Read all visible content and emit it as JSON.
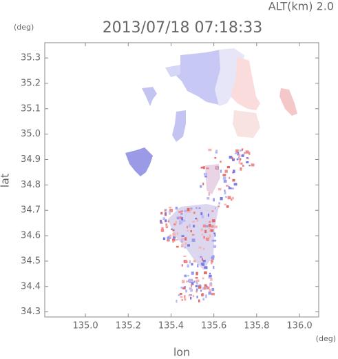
{
  "chart_data": {
    "type": "map",
    "title": "2013/07/18 07:18:33",
    "annotation": "ALT(km) 2.0",
    "y_unit": "(deg)",
    "x_unit": "(deg)",
    "x_label": "lon",
    "y_label": "lat",
    "xlim": [
      134.81,
      136.09
    ],
    "ylim": [
      34.28,
      35.36
    ],
    "xticks": [
      {
        "value": 135,
        "label": "135.0"
      },
      135.2,
      135.4,
      135.6,
      135.8,
      {
        "value": 136,
        "label": "136.0"
      }
    ],
    "yticks": [
      34.3,
      34.4,
      34.5,
      34.6,
      34.7,
      34.8,
      34.9,
      {
        "value": 35,
        "label": "35.0"
      },
      35.1,
      35.2,
      35.3
    ]
  }
}
